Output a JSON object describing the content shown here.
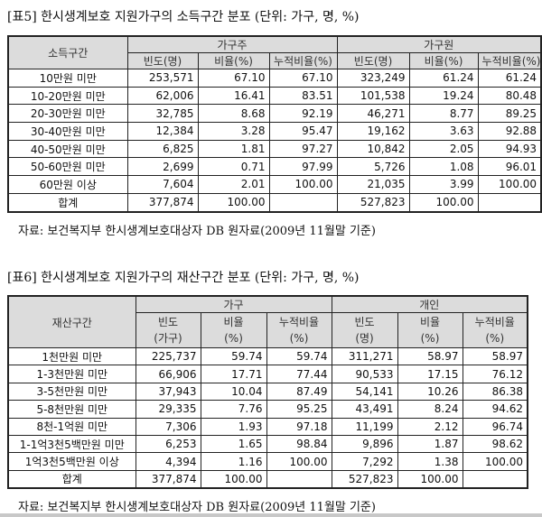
{
  "table5": {
    "title": "[표5] 한시생계보호 지원가구의 소득구간 분포 (단위: 가구, 명, %)",
    "row_header": "소득구간",
    "groups": [
      "가구주",
      "가구원"
    ],
    "subheaders": [
      "빈도(명)",
      "비율(%)",
      "누적비율(%)",
      "빈도(명)",
      "비율(%)",
      "누적비율(%)"
    ],
    "rows": [
      {
        "label": "10만원 미만",
        "values": [
          "253,571",
          "67.10",
          "67.10",
          "323,249",
          "61.24",
          "61.24"
        ]
      },
      {
        "label": "10-20만원 미만",
        "values": [
          "62,006",
          "16.41",
          "83.51",
          "101,538",
          "19.24",
          "80.48"
        ]
      },
      {
        "label": "20-30만원 미만",
        "values": [
          "32,785",
          "8.68",
          "92.19",
          "46,271",
          "8.77",
          "89.25"
        ]
      },
      {
        "label": "30-40만원 미만",
        "values": [
          "12,384",
          "3.28",
          "95.47",
          "19,162",
          "3.63",
          "92.88"
        ]
      },
      {
        "label": "40-50만원 미만",
        "values": [
          "6,825",
          "1.81",
          "97.27",
          "10,842",
          "2.05",
          "94.93"
        ]
      },
      {
        "label": "50-60만원 미만",
        "values": [
          "2,699",
          "0.71",
          "97.99",
          "5,726",
          "1.08",
          "96.01"
        ]
      },
      {
        "label": "60만원 이상",
        "values": [
          "7,604",
          "2.01",
          "100.00",
          "21,035",
          "3.99",
          "100.00"
        ]
      },
      {
        "label": "합계",
        "values": [
          "377,874",
          "100.00",
          "",
          "527,823",
          "100.00",
          ""
        ]
      }
    ],
    "source": "자료: 보건복지부 한시생계보호대상자 DB 원자료(2009년 11월말 기준)"
  },
  "table6": {
    "title": "[표6] 한시생계보호 지원가구의 재산구간 분포  (단위: 가구, 명, %)",
    "row_header": "재산구간",
    "groups": [
      "가구",
      "개인"
    ],
    "subheaders": [
      [
        "빈도",
        "(가구)"
      ],
      [
        "비율",
        "(%)"
      ],
      [
        "누적비율",
        "(%)"
      ],
      [
        "빈도",
        "(명)"
      ],
      [
        "비율",
        "(%)"
      ],
      [
        "누적비율",
        "(%)"
      ]
    ],
    "rows": [
      {
        "label": "1천만원 미만",
        "values": [
          "225,737",
          "59.74",
          "59.74",
          "311,271",
          "58.97",
          "58.97"
        ]
      },
      {
        "label": "1-3천만원 미만",
        "values": [
          "66,906",
          "17.71",
          "77.44",
          "90,533",
          "17.15",
          "76.12"
        ]
      },
      {
        "label": "3-5천만원 미만",
        "values": [
          "37,943",
          "10.04",
          "87.49",
          "54,141",
          "10.26",
          "86.38"
        ]
      },
      {
        "label": "5-8천만원 미만",
        "values": [
          "29,335",
          "7.76",
          "95.25",
          "43,491",
          "8.24",
          "94.62"
        ]
      },
      {
        "label": "8천-1억원 미만",
        "values": [
          "7,306",
          "1.93",
          "97.18",
          "11,199",
          "2.12",
          "96.74"
        ]
      },
      {
        "label": "1-1억3천5백만원 미만",
        "values": [
          "6,253",
          "1.65",
          "98.84",
          "9,896",
          "1.87",
          "98.62"
        ]
      },
      {
        "label": "1억3천5백만원 이상",
        "values": [
          "4,394",
          "1.16",
          "100.00",
          "7,292",
          "1.38",
          "100.00"
        ]
      },
      {
        "label": "합계",
        "values": [
          "377,874",
          "100.00",
          "",
          "527,823",
          "100.00",
          ""
        ]
      }
    ],
    "source": "자료: 보건복지부 한시생계보호대상자 DB 원자료(2009년 11월말 기준)"
  },
  "colors": {
    "header_bg": "#dcdcdc",
    "border": "#222222"
  }
}
